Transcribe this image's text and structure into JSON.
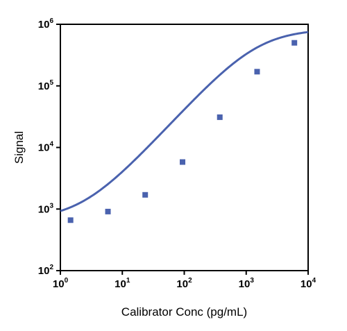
{
  "chart_data": {
    "type": "scatter",
    "xlabel": "Calibrator Conc (pg/mL)",
    "ylabel": "Signal",
    "x_scale": "log",
    "y_scale": "log",
    "xlim": [
      1,
      10000
    ],
    "ylim": [
      100,
      1000000
    ],
    "x_ticks": [
      {
        "value": 1,
        "base": "10",
        "exp": "0"
      },
      {
        "value": 10,
        "base": "10",
        "exp": "1"
      },
      {
        "value": 100,
        "base": "10",
        "exp": "2"
      },
      {
        "value": 1000,
        "base": "10",
        "exp": "3"
      },
      {
        "value": 10000,
        "base": "10",
        "exp": "4"
      }
    ],
    "y_ticks": [
      {
        "value": 100,
        "base": "10",
        "exp": "2"
      },
      {
        "value": 1000,
        "base": "10",
        "exp": "3"
      },
      {
        "value": 10000,
        "base": "10",
        "exp": "4"
      },
      {
        "value": 100000,
        "base": "10",
        "exp": "5"
      },
      {
        "value": 1000000,
        "base": "10",
        "exp": "6"
      }
    ],
    "grid": false,
    "legend": "none",
    "series": [
      {
        "x": [
          1.46,
          5.86,
          23.4,
          93.8,
          375,
          1500,
          6000
        ],
        "y": [
          660,
          910,
          1700,
          5800,
          31000,
          170000,
          500000
        ]
      }
    ],
    "curve": {
      "type": "4PL",
      "bottom": 660,
      "top": 840000,
      "ec50": 1500,
      "hill": 1.1
    },
    "colors": {
      "series": "#4a62ae",
      "axis": "#000000"
    }
  }
}
